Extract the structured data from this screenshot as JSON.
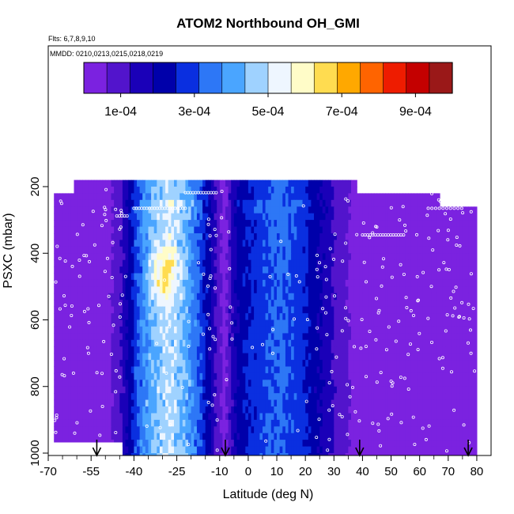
{
  "chart_data": {
    "type": "heatmap",
    "title": "ATOM2 Northbound OH_GMI",
    "flights_label": "Flts: 6,7,8,9,10",
    "mmdd_label": "MMDD: 0210,0213,0215,0218,0219",
    "xlabel": "Latitude (deg N)",
    "ylabel": "PSXC (mbar)",
    "xlim": [
      -70,
      85
    ],
    "ylim": [
      1010,
      0
    ],
    "x_ticks": [
      -70,
      -55,
      -40,
      -25,
      -10,
      0,
      10,
      20,
      30,
      40,
      50,
      60,
      70,
      80
    ],
    "x_minor_ticks": [
      -65,
      -60,
      -50,
      -45,
      -35,
      -30,
      -20,
      -15,
      -5,
      5,
      15,
      25,
      35,
      45,
      55,
      65,
      75
    ],
    "y_ticks": [
      200,
      400,
      600,
      800,
      1000
    ],
    "colorbar": {
      "range": [
        0,
        0.001
      ],
      "tick_values": [
        0.0001,
        0.0003,
        0.0005,
        0.0007,
        0.0009
      ],
      "tick_labels": [
        "1e-04",
        "3e-04",
        "5e-04",
        "7e-04",
        "9e-04"
      ],
      "colors": [
        "#7b22e0",
        "#5214cc",
        "#1a00b8",
        "#0000aa",
        "#0a2fe0",
        "#2d77f6",
        "#4aa5ff",
        "#9fd2ff",
        "#eef6ff",
        "#fffcc8",
        "#ffdc50",
        "#ffa800",
        "#ff6400",
        "#ee1c00",
        "#c40000",
        "#9a1818"
      ]
    },
    "lat_profile": {
      "lat": [
        -67,
        -60,
        -55,
        -50,
        -46,
        -43,
        -40,
        -37,
        -34,
        -31,
        -28,
        -25,
        -22,
        -19,
        -16,
        -13,
        -11,
        -9.5,
        -8,
        -6,
        -3,
        0,
        3,
        7,
        11,
        15,
        19,
        23,
        27,
        30,
        33,
        36,
        38,
        40,
        45,
        50,
        55,
        60,
        65,
        70,
        75,
        80
      ],
      "value": [
        1e-05,
        1e-05,
        2e-05,
        4e-05,
        9e-05,
        0.00018,
        0.00029,
        0.00037,
        0.00043,
        0.00047,
        0.00049,
        0.00046,
        0.00041,
        0.00035,
        0.00026,
        0.00016,
        9e-05,
        5e-05,
        6e-05,
        0.00015,
        0.00023,
        0.00026,
        0.00028,
        0.00031,
        0.00033,
        0.0003,
        0.00026,
        0.00021,
        0.00016,
        0.00011,
        8e-05,
        5e-05,
        4e-05,
        3e-05,
        5e-05,
        4e-05,
        4e-05,
        3e-05,
        3e-05,
        2e-05,
        2e-05,
        1e-05
      ]
    },
    "hotspot": {
      "lat": -30,
      "pressure": 450,
      "value": 0.00065
    },
    "data_coverage": {
      "lat_range": [
        -68,
        80
      ],
      "pressure_range": [
        180,
        1000
      ]
    },
    "flight_bottom_lats": [
      -53,
      -8,
      39,
      77
    ]
  }
}
